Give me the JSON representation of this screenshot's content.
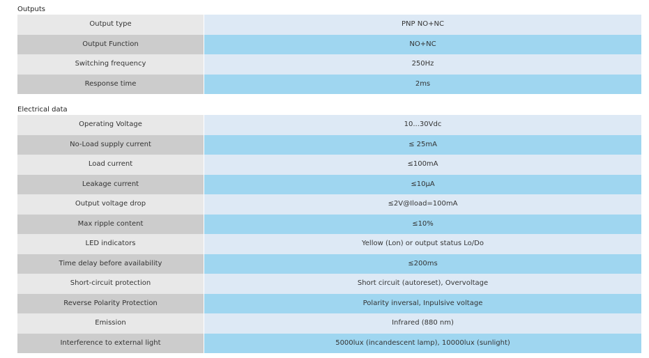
{
  "sections": [
    {
      "title": "Outputs",
      "rows": [
        {
          "label": "Output type",
          "value": "PNP NO+NC"
        },
        {
          "label": "Output Function",
          "value": "NO+NC"
        },
        {
          "label": "Switching frequency",
          "value": "250Hz"
        },
        {
          "label": "Response time",
          "value": "2ms"
        }
      ]
    },
    {
      "title": "Electrical data",
      "rows": [
        {
          "label": "Operating Voltage",
          "value": "10...30Vdc"
        },
        {
          "label": "No-Load supply current",
          "value": "≤ 25mA"
        },
        {
          "label": "Load current",
          "value": "≤100mA"
        },
        {
          "label": "Leakage current",
          "value": "≤10μA"
        },
        {
          "label": "Output voltage drop",
          "value": "≤2V@Iload=100mA"
        },
        {
          "label": "Max ripple content",
          "value": "≤10%"
        },
        {
          "label": "LED indicators",
          "value": "Yellow (Lon) or output status Lo/Do"
        },
        {
          "label": "Time delay before availability",
          "value": "≤200ms"
        },
        {
          "label": "Short-circuit protection",
          "value": "Short circuit (autoreset), Overvoltage"
        },
        {
          "label": "Reverse Polarity Protection",
          "value": "Polarity inversal, Inpulsive voltage"
        },
        {
          "label": "Emission",
          "value": "Infrared (880 nm)"
        },
        {
          "label": "Interference to external light",
          "value": "5000lux (incandescent lamp), 10000lux (sunlight)"
        }
      ]
    }
  ]
}
